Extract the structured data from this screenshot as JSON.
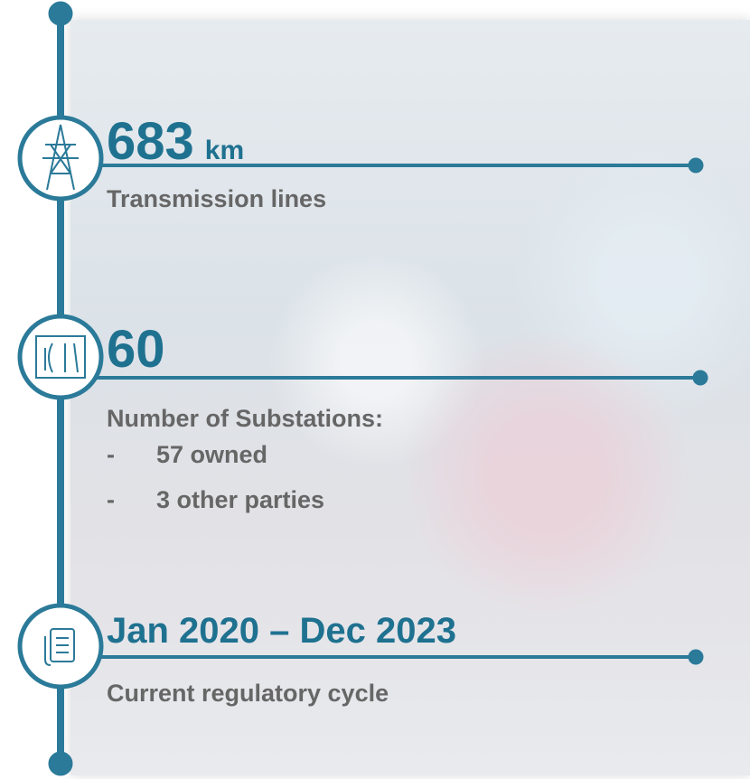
{
  "items": [
    {
      "value": "683",
      "unit": "km",
      "label": "Transmission lines"
    },
    {
      "value": "60",
      "label": "Number of Substations:",
      "marker": "-",
      "list": [
        "57 owned",
        "3 other parties"
      ]
    },
    {
      "value": "Jan 2020 – Dec 2023",
      "label": "Current regulatory cycle"
    }
  ]
}
